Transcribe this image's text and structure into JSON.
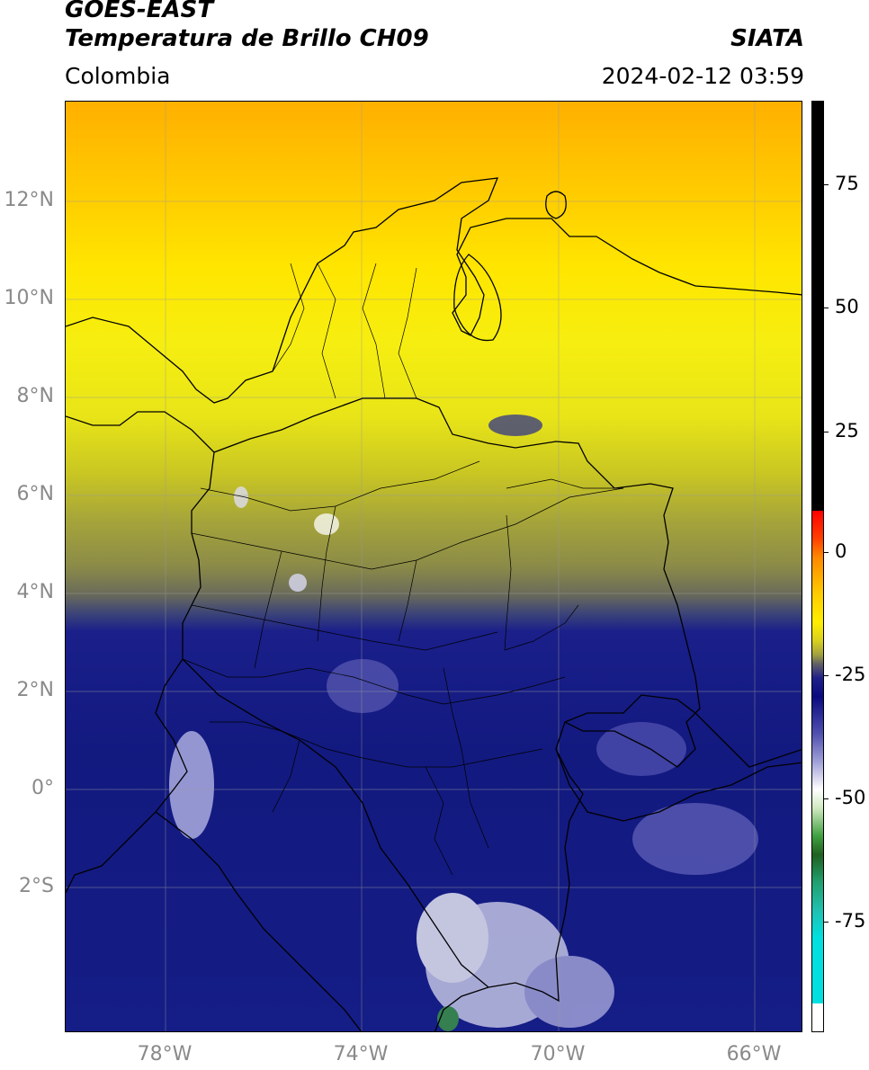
{
  "header": {
    "title_line1": "GOES-EAST",
    "title_line2": "Temperatura de Brillo CH09",
    "agency": "SIATA",
    "region": "Colombia",
    "timestamp": "2024-02-12 03:59"
  },
  "map": {
    "lat_labels": [
      "12°N",
      "10°N",
      "8°N",
      "6°N",
      "4°N",
      "2°N",
      "0°",
      "2°S"
    ],
    "lon_labels": [
      "78°W",
      "74°W",
      "70°W",
      "66°W"
    ],
    "grid": true,
    "colors": {
      "warm_high": "#ffb000",
      "mid": "#ffe600",
      "cold": "#12197f",
      "coldest": "#ffffff"
    }
  },
  "colorbar": {
    "tick_labels": [
      "75",
      "50",
      "25",
      "0",
      "-25",
      "-50",
      "-75"
    ]
  }
}
